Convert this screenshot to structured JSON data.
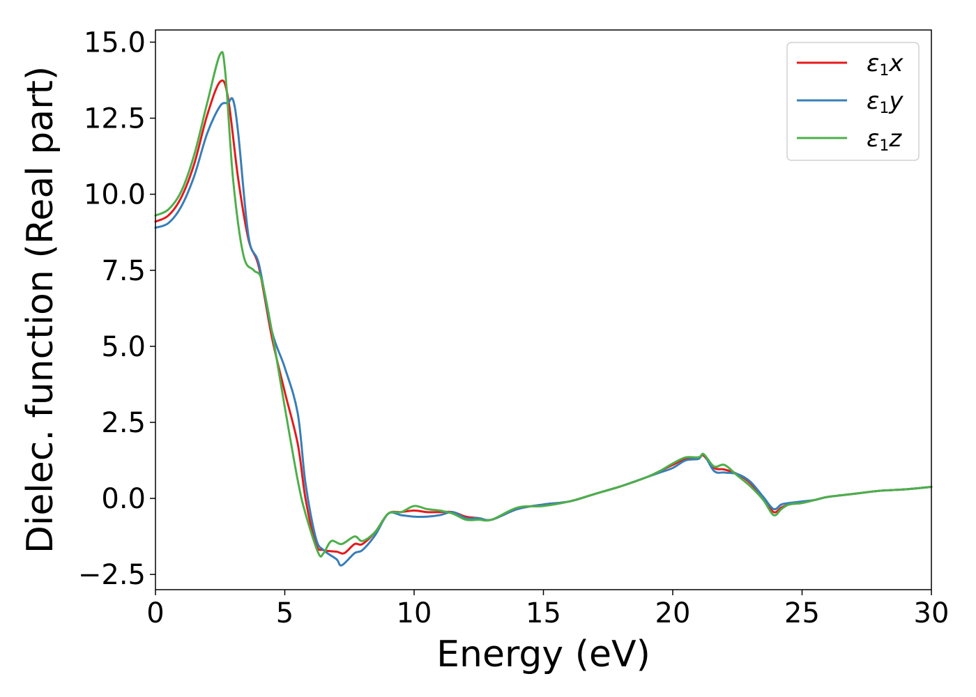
{
  "chart_data": {
    "type": "line",
    "xlabel": "Energy (eV)",
    "ylabel": "Dielec. function (Real part)",
    "xlim": [
      0,
      30
    ],
    "ylim": [
      -3.0,
      15.4
    ],
    "xticks": [
      0,
      5,
      10,
      15,
      20,
      25,
      30
    ],
    "xtick_labels": [
      "0",
      "5",
      "10",
      "15",
      "20",
      "25",
      "30"
    ],
    "yticks": [
      -2.5,
      0.0,
      2.5,
      5.0,
      7.5,
      10.0,
      12.5,
      15.0
    ],
    "ytick_labels": [
      "−2.5",
      "0.0",
      "2.5",
      "5.0",
      "7.5",
      "10.0",
      "12.5",
      "15.0"
    ],
    "grid": false,
    "legend_position": "top-right",
    "series": [
      {
        "name": "ε1x",
        "legend_main": "ε",
        "legend_sub": "1",
        "legend_suffix": "x",
        "color": "#e41a1c",
        "x": [
          0,
          0.5,
          1.0,
          1.5,
          2.0,
          2.5,
          2.8,
          3.2,
          3.6,
          4.0,
          4.5,
          5.0,
          5.5,
          5.8,
          6.2,
          6.5,
          7.0,
          7.3,
          7.7,
          8.0,
          8.5,
          9.0,
          9.5,
          10.0,
          10.5,
          11.0,
          11.5,
          12.0,
          12.5,
          13.0,
          14.0,
          15.0,
          16.0,
          17.0,
          18.0,
          19.0,
          19.5,
          20.0,
          20.5,
          21.0,
          21.2,
          21.6,
          22.0,
          22.5,
          23.0,
          23.5,
          23.9,
          24.2,
          24.5,
          25.0,
          25.5,
          26.0,
          27.0,
          28.0,
          29.0,
          30.0
        ],
        "y": [
          9.1,
          9.3,
          9.9,
          11.0,
          12.6,
          13.7,
          13.2,
          10.5,
          8.5,
          7.6,
          5.3,
          3.5,
          1.8,
          0.0,
          -1.5,
          -1.7,
          -1.75,
          -1.8,
          -1.5,
          -1.5,
          -1.1,
          -0.5,
          -0.45,
          -0.4,
          -0.45,
          -0.45,
          -0.45,
          -0.6,
          -0.65,
          -0.7,
          -0.35,
          -0.2,
          -0.1,
          0.15,
          0.4,
          0.7,
          0.9,
          1.1,
          1.3,
          1.35,
          1.4,
          1.0,
          0.95,
          0.8,
          0.5,
          0.0,
          -0.45,
          -0.3,
          -0.2,
          -0.15,
          -0.05,
          0.05,
          0.15,
          0.25,
          0.3,
          0.38
        ]
      },
      {
        "name": "ε1y",
        "legend_main": "ε",
        "legend_sub": "1",
        "legend_suffix": "y",
        "color": "#377eb8",
        "x": [
          0,
          0.5,
          1.0,
          1.5,
          2.0,
          2.5,
          2.8,
          3.0,
          3.2,
          3.6,
          4.0,
          4.5,
          5.0,
          5.5,
          5.8,
          6.2,
          6.5,
          7.0,
          7.2,
          7.7,
          8.0,
          8.5,
          9.0,
          9.5,
          10.0,
          10.5,
          11.0,
          11.5,
          12.0,
          12.5,
          13.0,
          14.0,
          15.0,
          16.0,
          17.0,
          18.0,
          19.0,
          19.5,
          20.0,
          20.5,
          21.0,
          21.2,
          21.6,
          22.0,
          22.5,
          23.0,
          23.5,
          23.9,
          24.2,
          24.5,
          25.0,
          25.5,
          26.0,
          27.0,
          28.0,
          29.0,
          30.0
        ],
        "y": [
          8.9,
          9.05,
          9.6,
          10.6,
          12.0,
          12.9,
          13.0,
          13.1,
          12.0,
          8.6,
          7.7,
          5.5,
          4.3,
          2.8,
          0.5,
          -1.3,
          -1.7,
          -2.0,
          -2.2,
          -1.8,
          -1.7,
          -1.2,
          -0.5,
          -0.55,
          -0.6,
          -0.6,
          -0.55,
          -0.45,
          -0.65,
          -0.65,
          -0.7,
          -0.35,
          -0.2,
          -0.1,
          0.15,
          0.4,
          0.7,
          0.85,
          1.0,
          1.25,
          1.3,
          1.45,
          0.9,
          0.85,
          0.8,
          0.55,
          0.05,
          -0.35,
          -0.2,
          -0.15,
          -0.1,
          -0.05,
          0.05,
          0.15,
          0.25,
          0.3,
          0.38
        ]
      },
      {
        "name": "ε1z",
        "legend_main": "ε",
        "legend_sub": "1",
        "legend_suffix": "z",
        "color": "#4daf4a",
        "x": [
          0,
          0.5,
          1.0,
          1.5,
          2.0,
          2.5,
          2.7,
          3.0,
          3.4,
          3.8,
          4.1,
          4.5,
          5.0,
          5.5,
          5.8,
          6.3,
          6.5,
          6.8,
          7.2,
          7.7,
          8.0,
          8.5,
          9.0,
          9.5,
          10.0,
          10.5,
          11.0,
          11.5,
          12.0,
          12.5,
          13.0,
          14.0,
          15.0,
          16.0,
          17.0,
          18.0,
          19.0,
          19.5,
          20.0,
          20.5,
          21.0,
          21.2,
          21.6,
          22.0,
          22.5,
          23.0,
          23.5,
          23.9,
          24.2,
          24.5,
          25.0,
          25.5,
          26.0,
          27.0,
          28.0,
          29.0,
          30.0
        ],
        "y": [
          9.3,
          9.5,
          10.1,
          11.3,
          13.0,
          14.6,
          14.0,
          10.5,
          8.0,
          7.5,
          7.2,
          5.5,
          3.0,
          0.6,
          -0.5,
          -1.8,
          -1.8,
          -1.4,
          -1.5,
          -1.25,
          -1.4,
          -1.1,
          -0.5,
          -0.45,
          -0.25,
          -0.35,
          -0.4,
          -0.5,
          -0.7,
          -0.7,
          -0.7,
          -0.3,
          -0.25,
          -0.1,
          0.15,
          0.4,
          0.7,
          0.9,
          1.15,
          1.35,
          1.35,
          1.45,
          1.05,
          1.1,
          0.75,
          0.4,
          -0.05,
          -0.55,
          -0.35,
          -0.2,
          -0.15,
          -0.05,
          0.05,
          0.15,
          0.25,
          0.3,
          0.38
        ]
      }
    ]
  }
}
